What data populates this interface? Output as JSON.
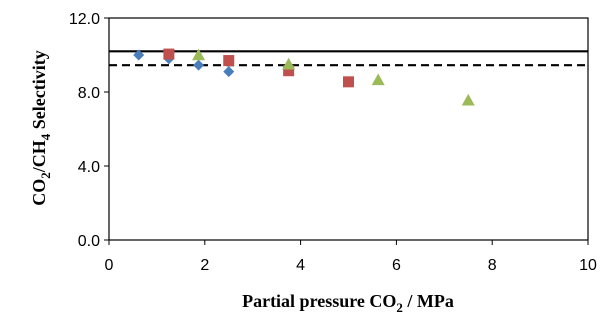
{
  "chart_data": {
    "type": "scatter",
    "xlabel_main": "Partial pressure CO",
    "xlabel_sub": "2",
    "xlabel_rest": " / MPa",
    "ylabel_p1": "CO",
    "ylabel_s1": "2",
    "ylabel_p2": "/CH",
    "ylabel_s2": "4",
    "ylabel_p3": " Selectivity",
    "xlim": [
      0,
      10
    ],
    "ylim": [
      0,
      12
    ],
    "x_ticks": [
      0,
      2,
      4,
      6,
      8,
      10
    ],
    "x_tick_labels": [
      "0",
      "2",
      "4",
      "6",
      "8",
      "10"
    ],
    "y_ticks": [
      0,
      4,
      8,
      12
    ],
    "y_tick_labels": [
      "0.0",
      "4.0",
      "8.0",
      "12.0"
    ],
    "grid": false,
    "series": [
      {
        "marker": "diamond",
        "color": "#4a7ebb",
        "points": [
          [
            0.62,
            10.0
          ],
          [
            1.25,
            9.8
          ],
          [
            1.87,
            9.45
          ],
          [
            2.5,
            9.1
          ]
        ]
      },
      {
        "marker": "square",
        "color": "#c0504d",
        "points": [
          [
            1.25,
            10.05
          ],
          [
            2.5,
            9.7
          ],
          [
            3.75,
            9.15
          ],
          [
            5.0,
            8.55
          ]
        ]
      },
      {
        "marker": "triangle",
        "color": "#9bbb59",
        "points": [
          [
            1.87,
            10.0
          ],
          [
            3.75,
            9.5
          ],
          [
            5.62,
            8.65
          ],
          [
            7.5,
            7.55
          ]
        ]
      }
    ],
    "reference_lines": [
      {
        "style": "solid",
        "y": 10.2,
        "color": "#000000"
      },
      {
        "style": "dashed",
        "y": 9.45,
        "color": "#000000"
      }
    ]
  }
}
